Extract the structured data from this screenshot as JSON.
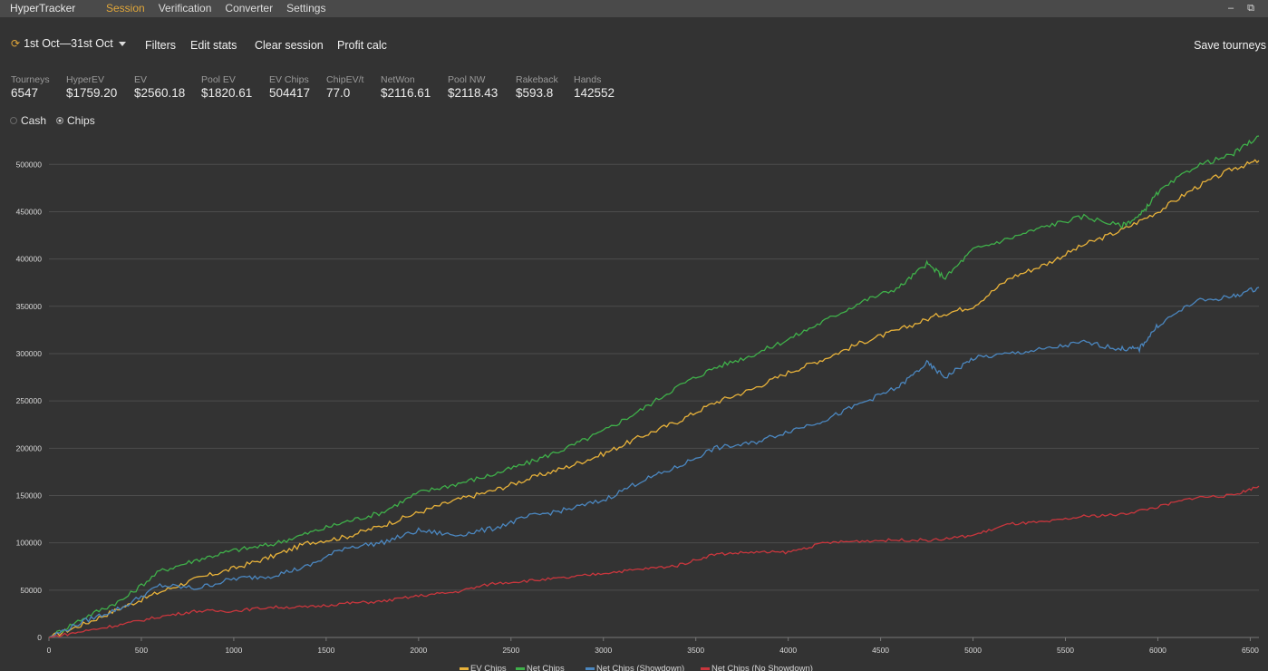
{
  "app": {
    "title": "HyperTracker"
  },
  "menu": [
    {
      "label": "Session",
      "active": true
    },
    {
      "label": "Verification",
      "active": false
    },
    {
      "label": "Converter",
      "active": false
    },
    {
      "label": "Settings",
      "active": false
    }
  ],
  "window_controls": {
    "minimize": "–",
    "restore": "⧉"
  },
  "toolbar": {
    "date_range": "1st Oct—3​1st Oct",
    "filters": "Filters",
    "edit_stats": "Edit stats",
    "clear_session": "Clear session",
    "profit_calc": "Profit calc",
    "save_tourneys": "Save tourneys"
  },
  "stats": [
    {
      "label": "Tourneys",
      "value": "6547"
    },
    {
      "label": "HyperEV",
      "value": "$1759.20"
    },
    {
      "label": "EV",
      "value": "$2560.18"
    },
    {
      "label": "Pool EV",
      "value": "$1820.61"
    },
    {
      "label": "EV Chips",
      "value": "504417"
    },
    {
      "label": "ChipEV/t",
      "value": "77.0"
    },
    {
      "label": "NetWon",
      "value": "$2116.61"
    },
    {
      "label": "Pool NW",
      "value": "$2118.43"
    },
    {
      "label": "Rakeback",
      "value": "$593.8"
    },
    {
      "label": "Hands",
      "value": "142552"
    }
  ],
  "mode": {
    "options": [
      "Cash",
      "Chips"
    ],
    "selected": "Chips"
  },
  "chart_data": {
    "type": "line",
    "xlim": [
      0,
      6547
    ],
    "ylim": [
      0,
      530000
    ],
    "x_ticks": [
      0,
      500,
      1000,
      1500,
      2000,
      2500,
      3000,
      3500,
      4000,
      4500,
      5000,
      5500,
      6000,
      6500
    ],
    "y_ticks": [
      0,
      50000,
      100000,
      150000,
      200000,
      250000,
      300000,
      350000,
      400000,
      450000,
      500000
    ],
    "grid": "horizontal",
    "legend_position": "bottom",
    "series": [
      {
        "name": "EV Chips",
        "color": "#e8b23a",
        "x": [
          0,
          200,
          400,
          600,
          800,
          1000,
          1200,
          1400,
          1600,
          1800,
          2000,
          2200,
          2400,
          2600,
          2800,
          3000,
          3200,
          3400,
          3600,
          3800,
          4000,
          4200,
          4400,
          4600,
          4800,
          5000,
          5200,
          5400,
          5600,
          5800,
          6000,
          6200,
          6400,
          6547
        ],
        "y": [
          0,
          15000,
          32000,
          48000,
          62000,
          73000,
          85000,
          100000,
          106000,
          118000,
          132000,
          145000,
          155000,
          168000,
          180000,
          194000,
          212000,
          228000,
          248000,
          262000,
          280000,
          295000,
          312000,
          325000,
          340000,
          350000,
          380000,
          395000,
          415000,
          430000,
          450000,
          475000,
          495000,
          504000
        ]
      },
      {
        "name": "Net Chips",
        "color": "#3fb04a",
        "x": [
          0,
          200,
          400,
          600,
          800,
          1000,
          1200,
          1400,
          1600,
          1800,
          2000,
          2200,
          2400,
          2600,
          2800,
          3000,
          3200,
          3400,
          3600,
          3800,
          4000,
          4200,
          4400,
          4600,
          4750,
          4850,
          5000,
          5200,
          5400,
          5600,
          5800,
          5900,
          6000,
          6200,
          6400,
          6547
        ],
        "y": [
          0,
          22000,
          40000,
          70000,
          82000,
          92000,
          98000,
          110000,
          122000,
          132000,
          153000,
          162000,
          172000,
          185000,
          200000,
          218000,
          240000,
          265000,
          285000,
          298000,
          315000,
          335000,
          355000,
          370000,
          395000,
          380000,
          410000,
          422000,
          435000,
          445000,
          435000,
          445000,
          470000,
          498000,
          510000,
          530000
        ]
      },
      {
        "name": "Net Chips (Showdown)",
        "color": "#4b87c0",
        "x": [
          0,
          200,
          400,
          600,
          800,
          1000,
          1200,
          1400,
          1600,
          1800,
          2000,
          2200,
          2400,
          2600,
          2800,
          3000,
          3200,
          3400,
          3600,
          3800,
          4000,
          4200,
          4400,
          4600,
          4750,
          4850,
          5000,
          5200,
          5400,
          5600,
          5800,
          5900,
          6000,
          6200,
          6400,
          6547
        ],
        "y": [
          0,
          18000,
          32000,
          55000,
          52000,
          62000,
          65000,
          75000,
          95000,
          100000,
          113000,
          108000,
          115000,
          128000,
          135000,
          145000,
          165000,
          180000,
          200000,
          205000,
          218000,
          230000,
          248000,
          265000,
          290000,
          275000,
          295000,
          300000,
          305000,
          312000,
          305000,
          305000,
          330000,
          355000,
          360000,
          370000
        ]
      },
      {
        "name": "Net Chips (No Showdown)",
        "color": "#c9363d",
        "x": [
          0,
          200,
          400,
          600,
          800,
          1000,
          1200,
          1400,
          1600,
          1800,
          2000,
          2200,
          2400,
          2600,
          2800,
          3000,
          3200,
          3400,
          3600,
          3800,
          4000,
          4200,
          4400,
          4600,
          4800,
          5000,
          5200,
          5400,
          5600,
          5800,
          6000,
          6200,
          6400,
          6547
        ],
        "y": [
          0,
          7000,
          14000,
          22000,
          28000,
          28000,
          32000,
          32000,
          36000,
          38000,
          44000,
          48000,
          57000,
          60000,
          63000,
          68000,
          72000,
          76000,
          88000,
          90000,
          90000,
          100000,
          102000,
          103000,
          103000,
          108000,
          120000,
          122000,
          128000,
          130000,
          138000,
          148000,
          150000,
          160000
        ]
      }
    ]
  }
}
